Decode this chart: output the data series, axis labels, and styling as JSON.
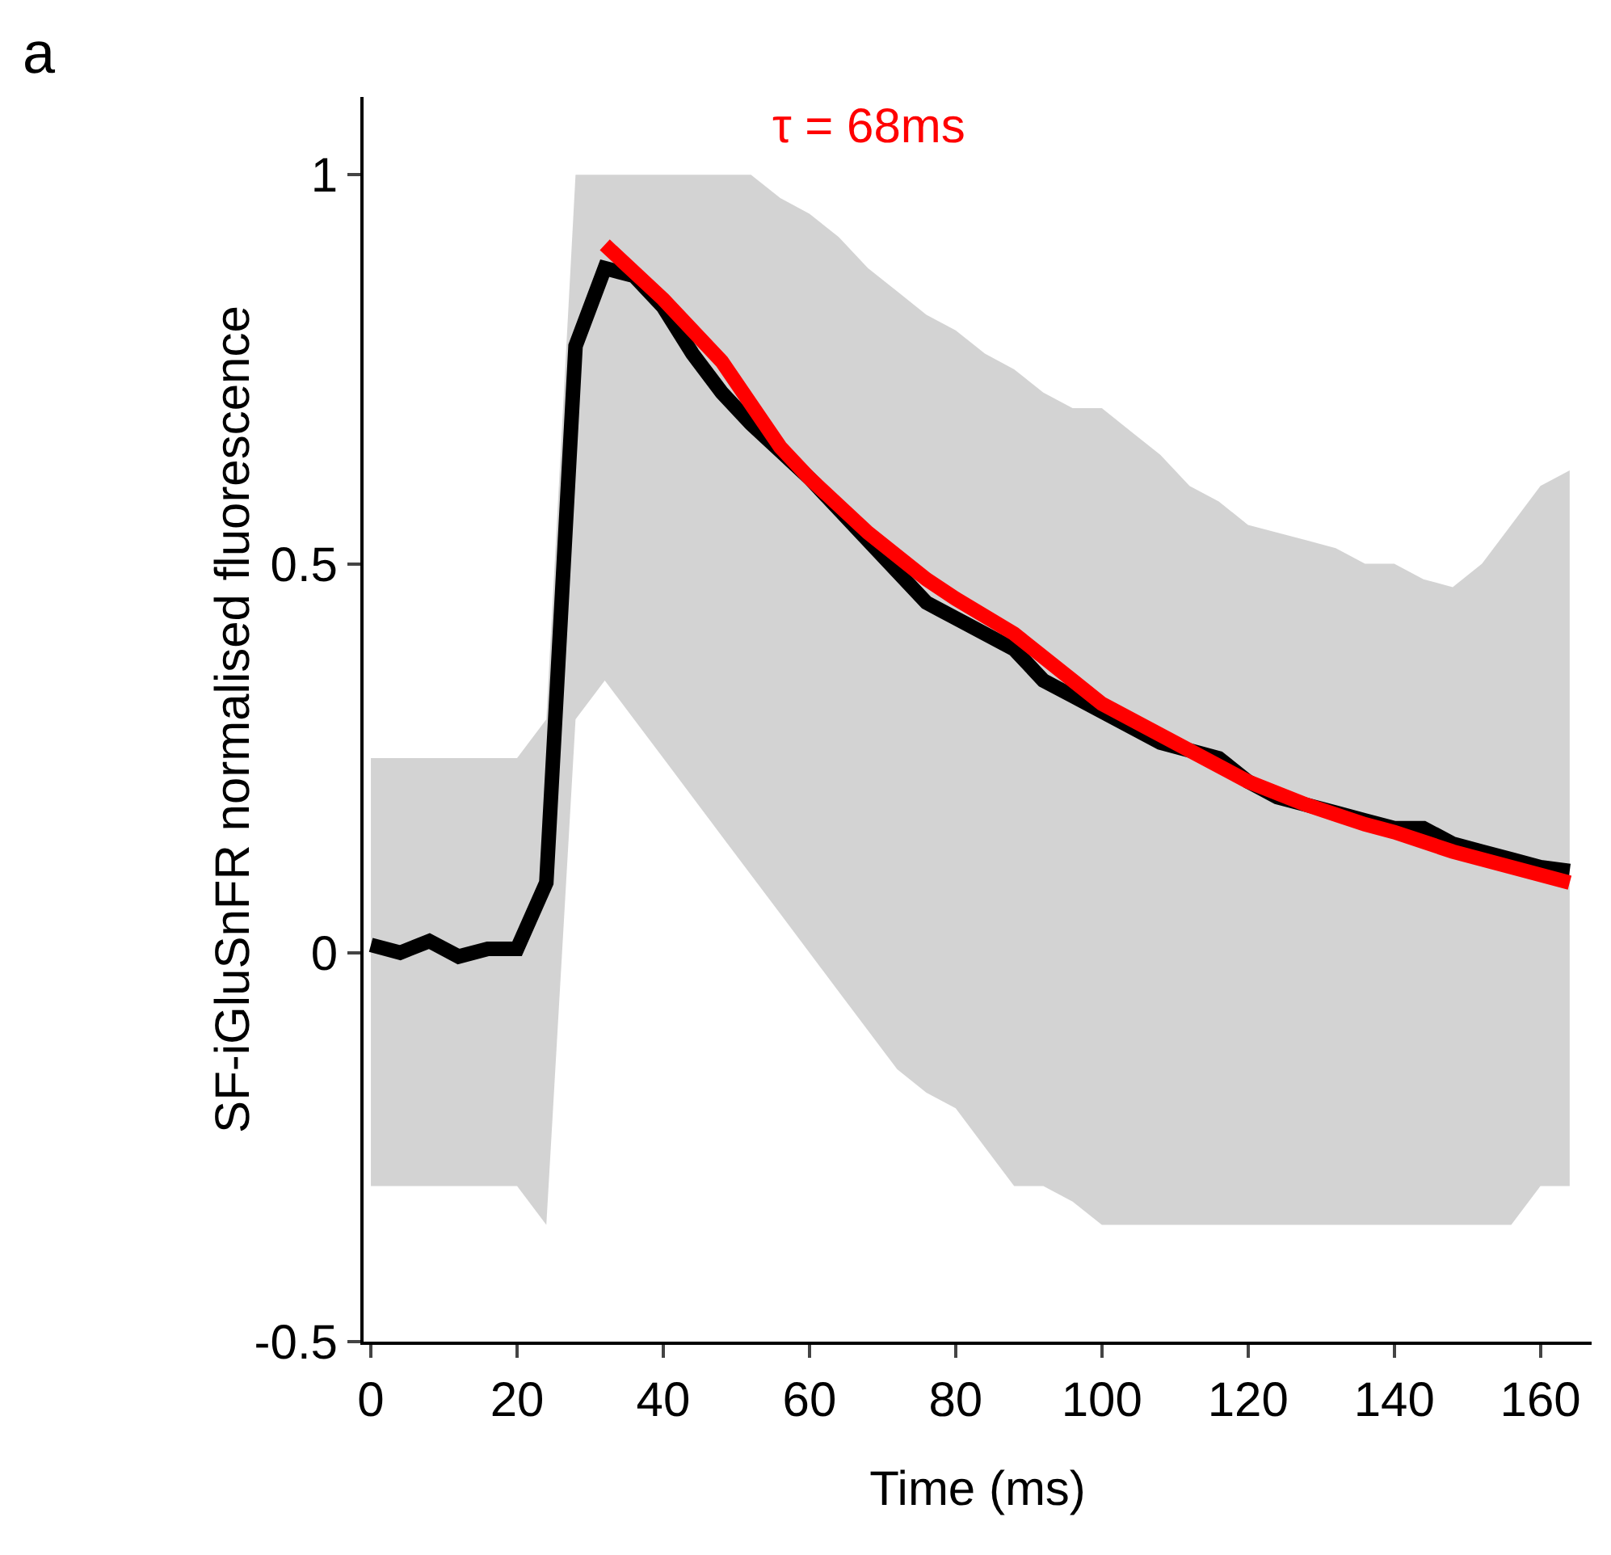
{
  "chart_data": {
    "type": "line",
    "xlabel": "Time (ms)",
    "ylabel": "SF-iGluSnFR normalised fluorescence",
    "annotations": [
      "a"
    ],
    "series": [
      {
        "color": "#000000",
        "x": [
          0,
          4,
          8,
          12,
          16,
          20,
          24,
          28,
          32,
          36,
          40,
          44,
          48,
          52,
          56,
          60,
          64,
          68,
          72,
          76,
          80,
          84,
          88,
          92,
          96,
          100,
          104,
          108,
          112,
          116,
          120,
          124,
          128,
          132,
          136,
          140,
          144,
          148,
          152,
          156,
          160,
          164
        ],
        "values": [
          0.01,
          0.0,
          0.015,
          -0.005,
          0.005,
          0.005,
          0.09,
          0.78,
          0.88,
          0.87,
          0.83,
          0.77,
          0.72,
          0.68,
          0.645,
          0.61,
          0.57,
          0.53,
          0.49,
          0.45,
          0.43,
          0.41,
          0.39,
          0.35,
          0.33,
          0.31,
          0.29,
          0.27,
          0.26,
          0.25,
          0.22,
          0.2,
          0.19,
          0.18,
          0.17,
          0.16,
          0.16,
          0.14,
          0.13,
          0.12,
          0.11,
          0.105
        ],
        "lower": [
          -0.3,
          -0.3,
          -0.3,
          -0.3,
          -0.3,
          -0.3,
          -0.35,
          0.3,
          0.35,
          0.3,
          0.25,
          0.2,
          0.15,
          0.1,
          0.05,
          0.0,
          -0.05,
          -0.1,
          -0.15,
          -0.18,
          -0.2,
          -0.25,
          -0.3,
          -0.3,
          -0.32,
          -0.35,
          -0.35,
          -0.35,
          -0.35,
          -0.35,
          -0.35,
          -0.35,
          -0.35,
          -0.35,
          -0.35,
          -0.35,
          -0.35,
          -0.35,
          -0.35,
          -0.35,
          -0.3,
          -0.3
        ],
        "upper": [
          0.25,
          0.25,
          0.25,
          0.25,
          0.25,
          0.25,
          0.3,
          1.0,
          1.0,
          1.0,
          1.0,
          1.0,
          1.0,
          1.0,
          0.97,
          0.95,
          0.92,
          0.88,
          0.85,
          0.82,
          0.8,
          0.77,
          0.75,
          0.72,
          0.7,
          0.7,
          0.67,
          0.64,
          0.6,
          0.58,
          0.55,
          0.54,
          0.53,
          0.52,
          0.5,
          0.5,
          0.48,
          0.47,
          0.5,
          0.55,
          0.6,
          0.62
        ]
      },
      {
        "name": "τ = 68ms",
        "color": "#ff0000",
        "x": [
          32,
          40,
          48,
          56,
          60,
          68,
          76,
          80,
          88,
          96,
          100,
          108,
          116,
          120,
          128,
          136,
          140,
          148,
          156,
          164
        ],
        "values": [
          0.91,
          0.84,
          0.76,
          0.65,
          0.61,
          0.54,
          0.48,
          0.455,
          0.41,
          0.35,
          0.32,
          0.28,
          0.24,
          0.22,
          0.19,
          0.165,
          0.155,
          0.13,
          0.11,
          0.09
        ]
      }
    ],
    "xlim": [
      -1,
      167
    ],
    "xticks": [
      0,
      20,
      40,
      60,
      80,
      100,
      120,
      140,
      160
    ],
    "ylim": [
      -0.5,
      1.1
    ],
    "yticks": [
      -0.5,
      0,
      0.5,
      1
    ],
    "grid": false,
    "legend": false
  }
}
